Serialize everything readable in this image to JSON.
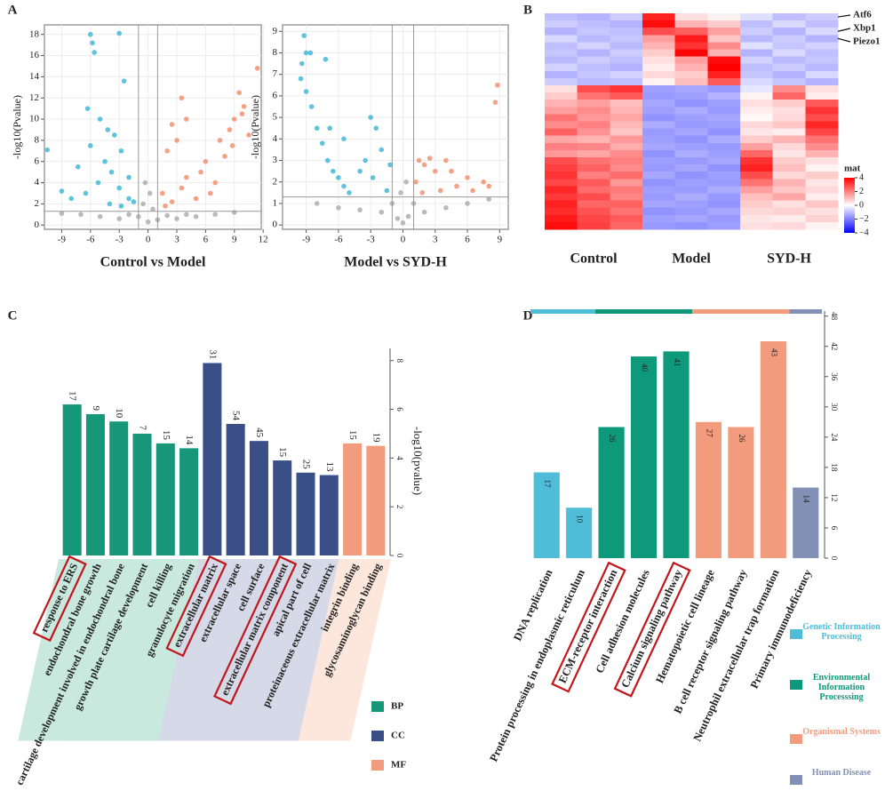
{
  "panel_labels": [
    "A",
    "B",
    "C",
    "D"
  ],
  "chart_data": [
    {
      "type": "scatter",
      "xlabel": "Control vs Model",
      "ylabel": "-log10(Pvalue)",
      "xlim": [
        -10.8,
        11.8
      ],
      "ylim": [
        -0.4,
        18.9
      ],
      "xticks": [
        -9,
        -6,
        -3,
        0,
        3,
        6,
        9,
        12
      ],
      "yticks": [
        0,
        2,
        4,
        6,
        8,
        10,
        12,
        14,
        16,
        18
      ],
      "grid": true,
      "thresholds": {
        "x": [
          -1,
          1
        ],
        "y": 1.3
      },
      "series": [
        {
          "color": "#b3b3b3",
          "x": [
            -7,
            -5,
            -3,
            -1,
            0,
            0.5,
            -0.5,
            1,
            3,
            5,
            7,
            9,
            -9,
            0.2,
            -0.3,
            4,
            -2,
            2
          ],
          "values": [
            1,
            0.8,
            0.6,
            0.8,
            0.3,
            1.5,
            2,
            0.5,
            0.6,
            0.8,
            1,
            1.2,
            1.1,
            3,
            4,
            1,
            1,
            0.9
          ]
        },
        {
          "color": "#4fbcd8",
          "x": [
            -6,
            -5.8,
            -3,
            -5.6,
            -2.5,
            -10.5,
            -6.3,
            -5,
            -4.2,
            -3.5,
            -6,
            -2.8,
            -7.3,
            -4.5,
            -3.8,
            -2,
            -5.2,
            -9,
            -8,
            -6.5,
            -3,
            -2,
            -4,
            -1.5,
            -2.8
          ],
          "values": [
            18,
            17.2,
            18.1,
            16.3,
            13.6,
            7.1,
            11,
            10,
            9,
            8.5,
            7.5,
            7,
            5.5,
            6,
            5,
            4.5,
            4,
            3.2,
            2.5,
            3,
            3.5,
            2.5,
            2,
            2.2,
            1.8
          ]
        },
        {
          "color": "#f4977a",
          "x": [
            11.4,
            9.5,
            10,
            9,
            8.5,
            7.5,
            3.5,
            4,
            2.5,
            3,
            2,
            6,
            5.5,
            4,
            7,
            8,
            9.8,
            1.5,
            2.5,
            5,
            10.5,
            6.5,
            3.5,
            8.8,
            1.8
          ],
          "values": [
            14.8,
            12.5,
            11.2,
            10,
            9,
            8,
            12,
            10,
            9.5,
            8,
            7,
            6,
            5,
            4.5,
            4,
            6.5,
            10.5,
            3,
            2.2,
            2.5,
            8.5,
            3,
            3.5,
            7.5,
            1.8
          ]
        }
      ]
    },
    {
      "type": "scatter",
      "xlabel": "Model vs SYD-H",
      "ylabel": "-log10(Pvalue)",
      "xlim": [
        -11.2,
        9.8
      ],
      "ylim": [
        -0.2,
        9.3
      ],
      "xticks": [
        -9,
        -6,
        -3,
        0,
        3,
        6,
        9
      ],
      "yticks": [
        0,
        1,
        2,
        3,
        4,
        5,
        6,
        7,
        8,
        9
      ],
      "grid": true,
      "thresholds": {
        "x": [
          -1,
          1
        ],
        "y": 1.3
      },
      "series": [
        {
          "color": "#b3b3b3",
          "x": [
            -8,
            -6,
            -4,
            -2,
            -0.5,
            0,
            0.5,
            2,
            4,
            6,
            8,
            -1,
            1,
            -0.2,
            0.3
          ],
          "values": [
            1,
            0.8,
            0.7,
            0.6,
            0.3,
            0.1,
            0.4,
            0.6,
            0.8,
            1,
            1.2,
            1,
            1,
            1.5,
            2
          ]
        },
        {
          "color": "#4fbcd8",
          "x": [
            -9.2,
            -9,
            -9.4,
            -8.6,
            -7.2,
            -9.5,
            -9,
            -8.5,
            -8,
            -7.5,
            -7,
            -6.5,
            -6,
            -5.5,
            -5,
            -4,
            -3,
            -2.5,
            -2,
            -3.5,
            -2.8,
            -1.5,
            -6.8,
            -5.5,
            -1.2
          ],
          "values": [
            8.8,
            8,
            7.5,
            8,
            7.7,
            6.8,
            6.2,
            5.5,
            4.5,
            3.8,
            3,
            2.5,
            2.2,
            1.8,
            1.5,
            2.5,
            5,
            4.5,
            3.5,
            3,
            2.2,
            1.6,
            4.5,
            4,
            2.8
          ]
        },
        {
          "color": "#f4977a",
          "x": [
            8.8,
            8.6,
            1.5,
            2,
            3,
            4.5,
            6,
            7.5,
            5,
            3.5,
            1.2,
            2.5,
            6.5,
            8,
            4,
            1.8
          ],
          "values": [
            6.5,
            5.7,
            3,
            2.8,
            2.5,
            2.5,
            2.2,
            2,
            1.8,
            1.6,
            2,
            3.1,
            1.6,
            1.8,
            3,
            1.5
          ]
        }
      ]
    },
    {
      "type": "heatmap",
      "groups": [
        "Control",
        "Model",
        "SYD-H"
      ],
      "gene_labels": [
        {
          "label": "Atf6",
          "row": 0
        },
        {
          "label": "Xbp1",
          "row": 2
        },
        {
          "label": "Piezo1",
          "row": 3
        }
      ],
      "legend_title": "mat",
      "clim": [
        -4,
        4
      ],
      "cticks": [
        4,
        2,
        0,
        {
          "value": -2,
          "label": "−2"
        },
        {
          "value": -4,
          "label": "−4"
        }
      ],
      "colors": {
        "low": "#0000ff",
        "mid": "#ffffff",
        "high": "#ff0000"
      },
      "matrix": [
        [
          -1,
          -1.2,
          -0.8,
          3.5,
          0.5,
          0.2,
          -0.5,
          -1,
          -0.8
        ],
        [
          -0.8,
          -1,
          -1.2,
          3.8,
          1.2,
          0.8,
          -1,
          -0.6,
          -1
        ],
        [
          -1.2,
          -0.9,
          -1,
          2.8,
          2.5,
          1.5,
          -0.8,
          -1.2,
          -0.6
        ],
        [
          -0.6,
          -1.1,
          -0.9,
          1.5,
          3.6,
          0.9,
          -1.1,
          -0.8,
          -1.2
        ],
        [
          -1,
          -0.7,
          -1.1,
          1.2,
          3.2,
          1.8,
          -0.5,
          -0.9,
          -0.7
        ],
        [
          -0.9,
          -1.2,
          -0.8,
          0.8,
          3.9,
          1.2,
          -1.2,
          -0.6,
          -1
        ],
        [
          -1.1,
          -0.8,
          -1,
          0.5,
          1.5,
          3.8,
          -0.7,
          -1.1,
          -0.9
        ],
        [
          -0.7,
          -1,
          -1.2,
          0.3,
          1.2,
          4,
          -1,
          -0.8,
          -1.1
        ],
        [
          -1.2,
          -0.9,
          -0.7,
          0.6,
          0.8,
          3.5,
          -0.9,
          -1.2,
          -0.6
        ],
        [
          -0.8,
          -1.1,
          -1,
          0.2,
          1,
          2.6,
          -0.6,
          -0.9,
          -1.2
        ],
        [
          0.5,
          2.8,
          3.2,
          -1.5,
          -1.4,
          -1.6,
          -0.4,
          1.8,
          0.5
        ],
        [
          0.8,
          2.2,
          2.6,
          -1.6,
          -1.5,
          -1.2,
          0.2,
          2.4,
          0.3
        ],
        [
          1.2,
          1.5,
          1,
          -1.4,
          -1.7,
          -1.5,
          0.5,
          0.8,
          2.6
        ],
        [
          1.5,
          1.8,
          1.2,
          -1.5,
          -1.3,
          -1.6,
          0.3,
          0.5,
          3.2
        ],
        [
          2.2,
          1.6,
          1.4,
          -1.7,
          -1.5,
          -1.4,
          0.1,
          0.6,
          2.8
        ],
        [
          1.8,
          2,
          1.1,
          -1.3,
          -1.6,
          -1.5,
          0.6,
          0.9,
          3.4
        ],
        [
          2.5,
          1.7,
          0.9,
          -1.6,
          -1.4,
          -1.7,
          0.4,
          0.3,
          2.9
        ],
        [
          1.4,
          1.2,
          1.6,
          -1.5,
          -1.7,
          -1.3,
          0.8,
          1.2,
          2.2
        ],
        [
          2,
          1.9,
          1.3,
          -1.4,
          -1.5,
          -1.6,
          1.5,
          0.6,
          1.8
        ],
        [
          1.6,
          1.4,
          1.8,
          -1.7,
          -1.3,
          -1.5,
          2.4,
          0.4,
          1.2
        ],
        [
          2.8,
          2.2,
          2,
          -1.5,
          -1.6,
          -1.4,
          3.2,
          0.8,
          0.5
        ],
        [
          3,
          2.5,
          1.8,
          -1.6,
          -1.4,
          -1.7,
          3.5,
          1,
          0.2
        ],
        [
          3.2,
          2,
          2.3,
          -1.4,
          -1.7,
          -1.5,
          2.8,
          0.6,
          0.8
        ],
        [
          2.9,
          2.6,
          1.6,
          -1.7,
          -1.5,
          -1.6,
          2.2,
          1.2,
          0.4
        ],
        [
          3.4,
          2.3,
          2.1,
          -1.5,
          -1.6,
          -1.3,
          1.5,
          0.9,
          0.6
        ],
        [
          3.1,
          2.8,
          1.9,
          -1.6,
          -1.3,
          -1.6,
          1,
          1.4,
          0.3
        ],
        [
          3.5,
          2.4,
          2.5,
          -1.4,
          -1.5,
          -1.7,
          0.8,
          0.5,
          0.9
        ],
        [
          3.3,
          2.7,
          2.2,
          -1.7,
          -1.6,
          -1.4,
          0.6,
          0.7,
          0.5
        ],
        [
          3.6,
          2.9,
          2.6,
          -1.5,
          -1.4,
          -1.6,
          0.4,
          0.3,
          0.7
        ],
        [
          3.8,
          3,
          2.4,
          -1.6,
          -1.7,
          -1.5,
          0.5,
          0.6,
          0.2
        ]
      ]
    },
    {
      "type": "bar",
      "ylabel": "-log10(pvalue)",
      "yaxis_side": "right",
      "categories": [
        "response to ERS",
        "endochondral bone growth",
        "cartilage development involved in endochondral bone",
        "growth plate cartilage development",
        "cell killing",
        "granulocyte migration",
        "extracellular matrix",
        "extracellular space",
        "cell surface",
        "extracellular matrix component",
        "apical part of cell",
        "proteinaceous extracellular matrix",
        "integrin binding",
        "glycosaminoglycan binding"
      ],
      "values": [
        6.2,
        5.8,
        5.5,
        5.0,
        4.6,
        4.4,
        7.9,
        5.4,
        4.7,
        3.9,
        3.4,
        3.3,
        4.6,
        4.5
      ],
      "counts": [
        17,
        9,
        10,
        7,
        15,
        14,
        31,
        54,
        45,
        15,
        25,
        13,
        15,
        19
      ],
      "legend": [
        {
          "name": "BP",
          "color": "#16977a",
          "shade": "#c9e9df"
        },
        {
          "name": "CC",
          "color": "#3a4f88",
          "shade": "#d6d9e7"
        },
        {
          "name": "MF",
          "color": "#f39b7d",
          "shade": "#fde6dc"
        }
      ],
      "category_legend": [
        0,
        0,
        0,
        0,
        0,
        0,
        1,
        1,
        1,
        1,
        1,
        1,
        2,
        2
      ],
      "highlighted": [
        0,
        6,
        9
      ],
      "ylim": [
        0,
        8.5
      ],
      "yticks": [
        0,
        2,
        4,
        6,
        8
      ]
    },
    {
      "type": "bar",
      "yaxis_side": "right",
      "labels_inside": true,
      "group_strip": true,
      "categories": [
        "DNA replication",
        "Protein processing in endoplasmic reticulum",
        "ECM-receptor interaction",
        "Cell adhesion molecules",
        "Calcium signaling pathway",
        "Hematopoietic cell lineage",
        "B cell receptor signaling pathway",
        "Neutrophil extracellular trap formation",
        "Primary immunodeficiency"
      ],
      "values": [
        17,
        10,
        26,
        40,
        41,
        27,
        26,
        43,
        14
      ],
      "legend": [
        {
          "name": "Genetic Information Processing",
          "color": "#4fbcd8"
        },
        {
          "name": "Environmental Information Processsing",
          "color": "#0e9a7a"
        },
        {
          "name": "Organismal Systems",
          "color": "#f39b7d"
        },
        {
          "name": "Human Disease",
          "color": "#8390b5"
        }
      ],
      "category_legend": [
        0,
        0,
        1,
        1,
        1,
        2,
        2,
        2,
        3
      ],
      "highlighted": [
        2,
        4
      ],
      "ylim": [
        0,
        49
      ],
      "yticks": [
        0,
        6,
        12,
        18,
        24,
        30,
        36,
        42,
        48
      ]
    }
  ]
}
